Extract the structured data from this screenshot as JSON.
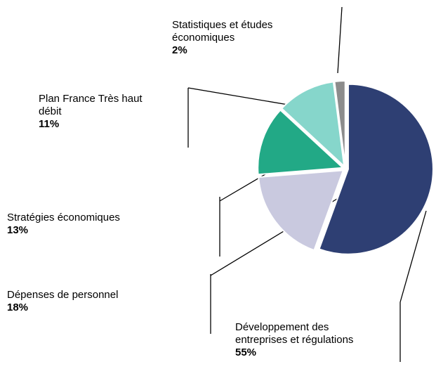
{
  "chart_data": {
    "type": "pie",
    "categories": [
      "Développement des entreprises et régulations",
      "Dépenses de personnel",
      "Stratégies économiques",
      "Plan France Très haut débit",
      "Statistiques et études économiques"
    ],
    "values": [
      55,
      18,
      13,
      11,
      2
    ],
    "value_labels": [
      "55%",
      "18%",
      "13%",
      "11%",
      "2%"
    ],
    "colors": [
      "#2e3f73",
      "#c9c9df",
      "#22a986",
      "#86d6cb",
      "#8c8c8c"
    ]
  }
}
